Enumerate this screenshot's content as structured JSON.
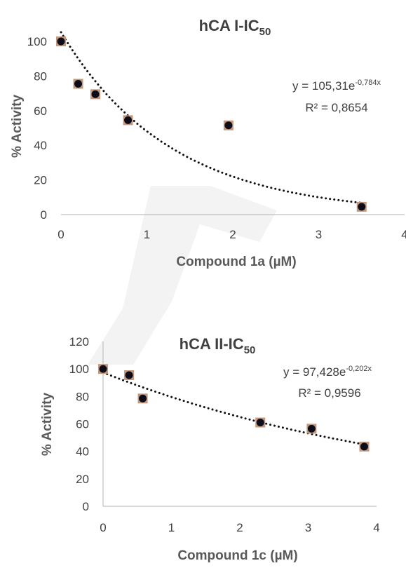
{
  "chart_data": [
    {
      "type": "scatter",
      "title": "hCA I-IC",
      "title_sub": "50",
      "xlabel": "Compound 1a (µM)",
      "ylabel": "% Activity",
      "xlim": [
        0,
        4
      ],
      "ylim": [
        0,
        100
      ],
      "xticks": [
        "0",
        "1",
        "2",
        "3",
        "4"
      ],
      "yticks": [
        "0",
        "20",
        "40",
        "60",
        "80",
        "100"
      ],
      "x": [
        0,
        0.2,
        0.4,
        0.78,
        1.95,
        3.5
      ],
      "y": [
        100,
        75.5,
        69.5,
        54.5,
        51.5,
        4.5
      ],
      "trendline": {
        "type": "exponential",
        "a": 105.31,
        "b": -0.784,
        "x_range": [
          0,
          3.5
        ]
      },
      "equation": {
        "prefix": "y = 105,31e",
        "exponent": "-0,784x"
      },
      "r_squared": "R² = 0,8654",
      "marker_fill": "#0d0d1a",
      "marker_edge": "#c4987d",
      "grid": false
    },
    {
      "type": "scatter",
      "title": "hCA II-IC",
      "title_sub": "50",
      "xlabel": "Compound 1c (µM)",
      "ylabel": "% Activity",
      "xlim": [
        0,
        4
      ],
      "ylim": [
        0,
        120
      ],
      "xticks": [
        "0",
        "1",
        "2",
        "3",
        "4"
      ],
      "yticks": [
        "0",
        "20",
        "40",
        "60",
        "80",
        "100",
        "120"
      ],
      "x": [
        0,
        0.38,
        0.58,
        2.3,
        3.05,
        3.82
      ],
      "y": [
        100,
        95.5,
        78.5,
        61,
        56.5,
        43.5
      ],
      "trendline": {
        "type": "exponential",
        "a": 97.428,
        "b": -0.202,
        "x_range": [
          0,
          3.82
        ]
      },
      "equation": {
        "prefix": "y = 97,428e",
        "exponent": "-0,202x"
      },
      "r_squared": "R² = 0,9596",
      "marker_fill": "#0d0d1a",
      "marker_edge": "#c4987d",
      "grid": false
    }
  ]
}
